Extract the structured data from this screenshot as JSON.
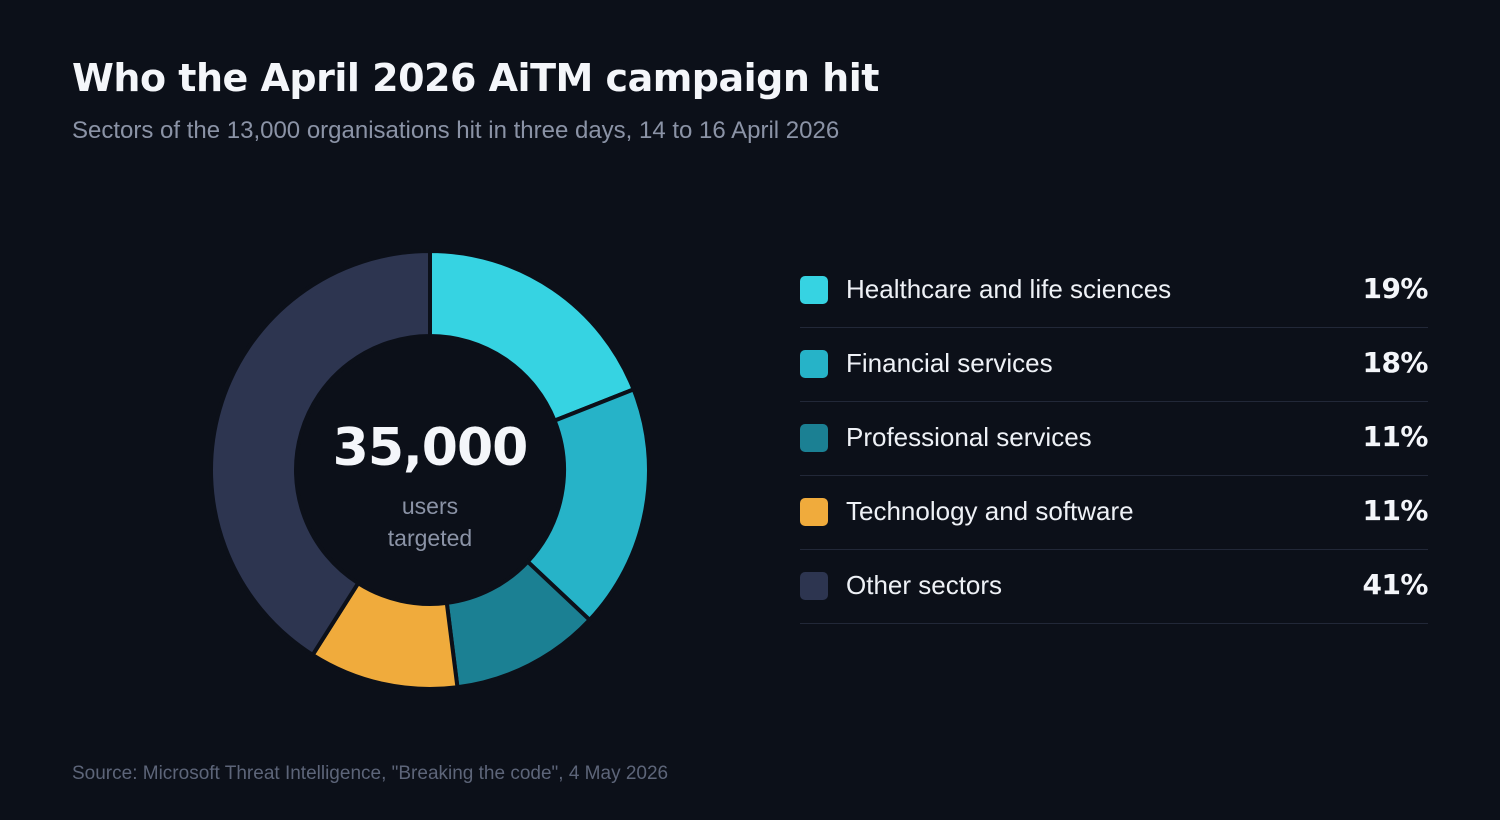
{
  "header": {
    "title": "Who the April 2026 AiTM campaign hit",
    "subtitle": "Sectors of the 13,000 organisations hit in three days, 14 to 16 April 2026"
  },
  "center": {
    "value": "35,000",
    "label_line1": "users",
    "label_line2": "targeted"
  },
  "footer": {
    "source": "Source: Microsoft Threat Intelligence, \"Breaking the code\", 4 May 2026"
  },
  "chart_data": {
    "type": "pie",
    "variant": "donut",
    "title": "Who the April 2026 AiTM campaign hit",
    "subtitle": "Sectors of the 13,000 organisations hit in three days, 14 to 16 April 2026",
    "legend_position": "right",
    "slices": [
      {
        "label": "Healthcare and life sciences",
        "value": 19,
        "display": "19%",
        "color": "#36d3e2"
      },
      {
        "label": "Financial services",
        "value": 18,
        "display": "18%",
        "color": "#26b3c8"
      },
      {
        "label": "Professional services",
        "value": 11,
        "display": "11%",
        "color": "#1b8093"
      },
      {
        "label": "Technology and software",
        "value": 11,
        "display": "11%",
        "color": "#f0ab3c"
      },
      {
        "label": "Other sectors",
        "value": 41,
        "display": "41%",
        "color": "#2d3550"
      }
    ]
  }
}
